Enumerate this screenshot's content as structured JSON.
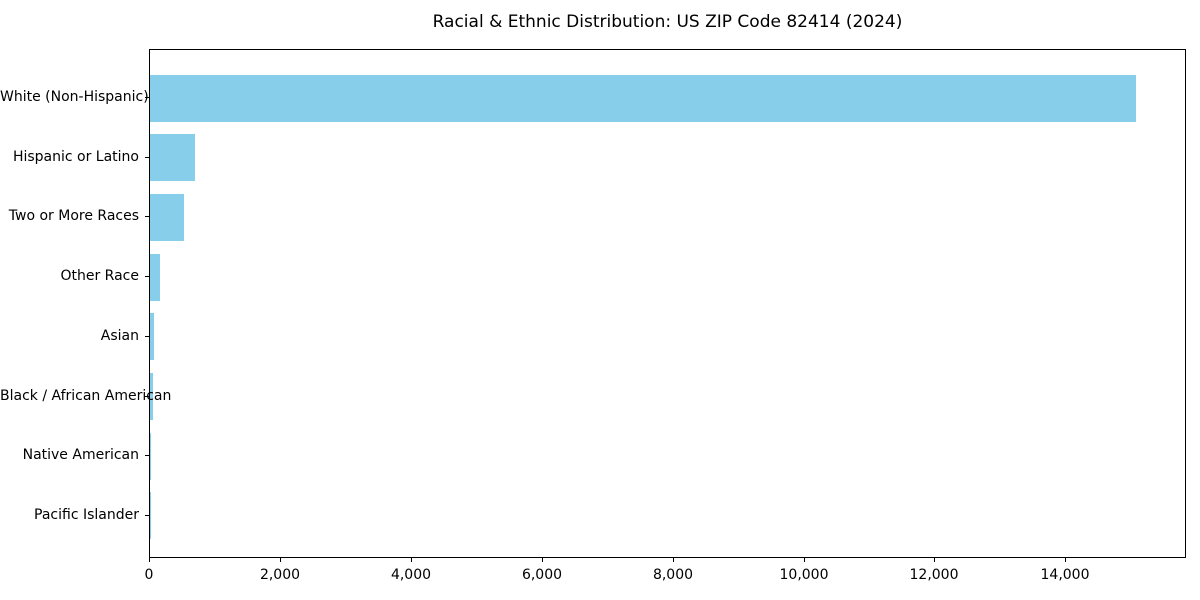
{
  "title": "Racial & Ethnic Distribution: US ZIP Code 82414 (2024)",
  "colors": {
    "bar": "#87CEEB",
    "axis": "#000000",
    "text": "#000000",
    "background": "#FFFFFF"
  },
  "chart_data": {
    "type": "bar",
    "orientation": "horizontal",
    "title": "Racial & Ethnic Distribution: US ZIP Code 82414 (2024)",
    "xlabel": "",
    "ylabel": "",
    "categories": [
      "White (Non-Hispanic)",
      "Hispanic or Latino",
      "Two or More Races",
      "Other Race",
      "Asian",
      "Black / African American",
      "Native American",
      "Pacific Islander"
    ],
    "values": [
      15060,
      690,
      520,
      160,
      55,
      40,
      15,
      5
    ],
    "xlim": [
      0,
      15813
    ],
    "xticks": [
      0,
      2000,
      4000,
      6000,
      8000,
      10000,
      12000,
      14000
    ],
    "xtick_labels": [
      "0",
      "2,000",
      "4,000",
      "6,000",
      "8,000",
      "10,000",
      "12,000",
      "14,000"
    ],
    "grid": false,
    "legend": "none",
    "bar_color": "#87CEEB"
  }
}
